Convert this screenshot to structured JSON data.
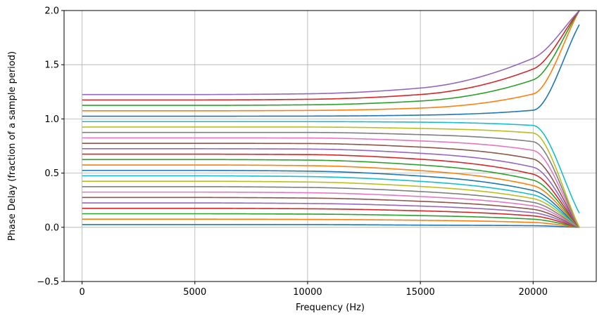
{
  "chart_data": {
    "type": "line",
    "title": "",
    "xlabel": "Frequency (Hz)",
    "ylabel": "Phase Delay (fraction of a sample period)",
    "xlim": [
      -800,
      22800
    ],
    "ylim": [
      -0.5,
      2.0
    ],
    "x_ticks": [
      0,
      5000,
      10000,
      15000,
      20000
    ],
    "x_tick_labels": [
      "0",
      "5000",
      "10000",
      "15000",
      "20000"
    ],
    "y_ticks": [
      -0.5,
      0.0,
      0.5,
      1.0,
      1.5,
      2.0
    ],
    "y_tick_labels": [
      "−0.5",
      "0.0",
      "0.5",
      "1.0",
      "1.5",
      "2.0"
    ],
    "grid": true,
    "x_range_hz": [
      0,
      22050
    ],
    "colors": [
      "#1f77b4",
      "#ff7f0e",
      "#2ca02c",
      "#d62728",
      "#9467bd",
      "#8c564b",
      "#e377c2",
      "#7f7f7f",
      "#bcbd22",
      "#17becf"
    ],
    "series": [
      {
        "values": [
          0.025,
          0.025,
          0.025,
          0.02,
          0.015,
          0.0
        ]
      },
      {
        "values": [
          0.075,
          0.075,
          0.073,
          0.065,
          0.045,
          0.0
        ]
      },
      {
        "values": [
          0.125,
          0.125,
          0.122,
          0.108,
          0.075,
          0.0
        ]
      },
      {
        "values": [
          0.175,
          0.175,
          0.171,
          0.152,
          0.105,
          0.0
        ]
      },
      {
        "values": [
          0.225,
          0.225,
          0.22,
          0.196,
          0.135,
          0.0
        ]
      },
      {
        "values": [
          0.275,
          0.275,
          0.27,
          0.24,
          0.166,
          0.0
        ]
      },
      {
        "values": [
          0.325,
          0.325,
          0.319,
          0.284,
          0.198,
          0.0
        ]
      },
      {
        "values": [
          0.375,
          0.375,
          0.368,
          0.33,
          0.23,
          0.0
        ]
      },
      {
        "values": [
          0.425,
          0.425,
          0.418,
          0.377,
          0.265,
          0.0
        ]
      },
      {
        "values": [
          0.475,
          0.475,
          0.468,
          0.424,
          0.3,
          0.0
        ]
      },
      {
        "values": [
          0.525,
          0.525,
          0.518,
          0.473,
          0.34,
          0.0
        ]
      },
      {
        "values": [
          0.575,
          0.575,
          0.569,
          0.523,
          0.385,
          0.0
        ]
      },
      {
        "values": [
          0.625,
          0.625,
          0.62,
          0.575,
          0.435,
          0.0
        ]
      },
      {
        "values": [
          0.675,
          0.675,
          0.671,
          0.628,
          0.49,
          0.0
        ]
      },
      {
        "values": [
          0.725,
          0.725,
          0.722,
          0.683,
          0.555,
          0.0
        ]
      },
      {
        "values": [
          0.775,
          0.775,
          0.773,
          0.74,
          0.63,
          0.0
        ]
      },
      {
        "values": [
          0.825,
          0.825,
          0.824,
          0.797,
          0.71,
          0.0
        ]
      },
      {
        "values": [
          0.875,
          0.875,
          0.875,
          0.855,
          0.79,
          0.0
        ]
      },
      {
        "values": [
          0.925,
          0.925,
          0.925,
          0.912,
          0.87,
          0.0
        ]
      },
      {
        "values": [
          0.975,
          0.975,
          0.975,
          0.97,
          0.94,
          0.13
        ]
      },
      {
        "values": [
          1.025,
          1.025,
          1.026,
          1.035,
          1.08,
          1.87
        ]
      },
      {
        "values": [
          1.075,
          1.075,
          1.078,
          1.1,
          1.23,
          2.0
        ]
      },
      {
        "values": [
          1.125,
          1.125,
          1.13,
          1.165,
          1.36,
          2.0
        ]
      },
      {
        "values": [
          1.175,
          1.175,
          1.181,
          1.225,
          1.46,
          2.0
        ]
      },
      {
        "values": [
          1.225,
          1.225,
          1.232,
          1.285,
          1.56,
          2.0
        ]
      }
    ]
  }
}
